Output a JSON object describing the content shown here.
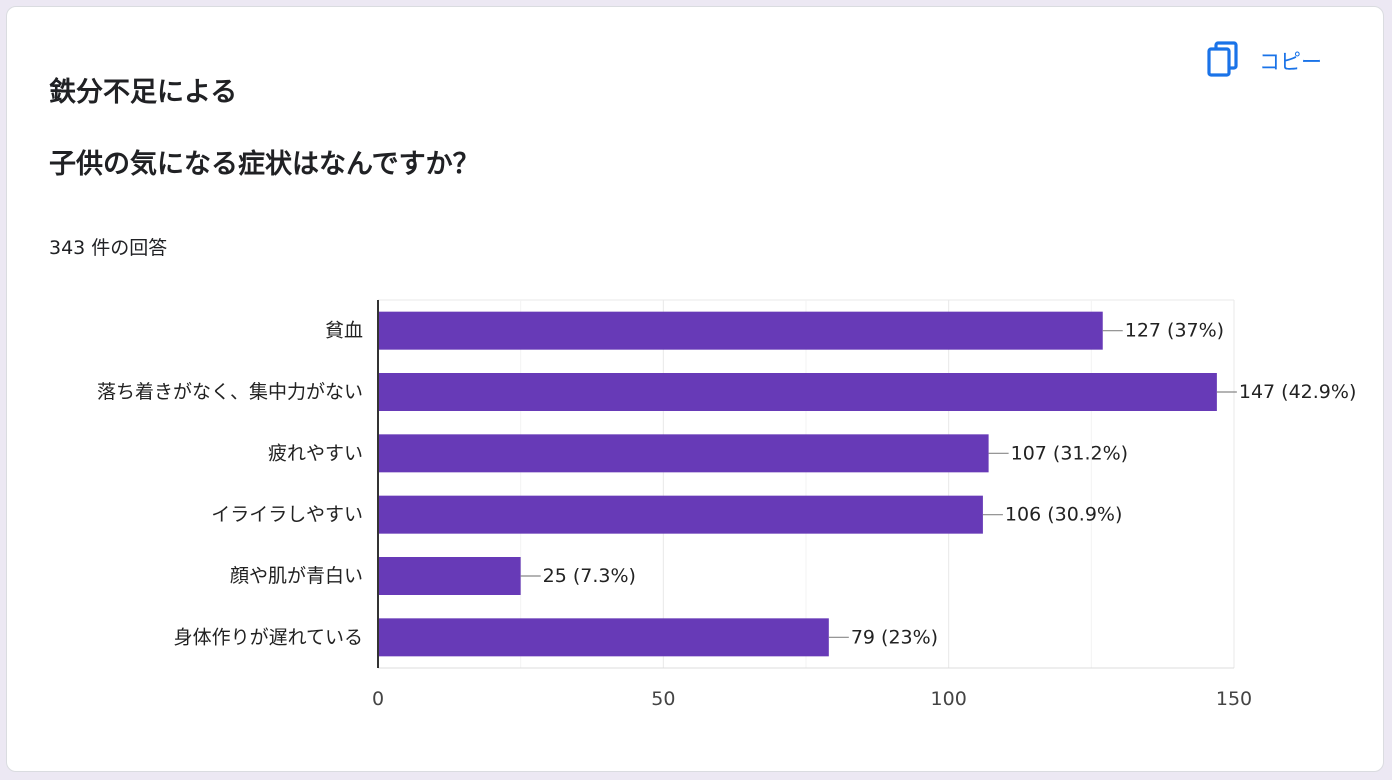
{
  "question": {
    "title_line1": "鉄分不足による",
    "title_line2": "子供の気になる症状はなんですか？",
    "response_count": "343 件の回答"
  },
  "copy_button": {
    "label": "コピー",
    "icon": "copy-icon"
  },
  "colors": {
    "bar": "#673ab7",
    "accent": "#1a73e8",
    "grid": "#e8e8e8",
    "axis": "#333333"
  },
  "chart_data": {
    "type": "bar",
    "orientation": "horizontal",
    "categories": [
      "貧血",
      "落ち着きがなく、集中力がない",
      "疲れやすい",
      "イライラしやすい",
      "顔や肌が青白い",
      "身体作りが遅れている"
    ],
    "values": [
      127,
      147,
      107,
      106,
      25,
      79
    ],
    "data_labels": [
      "127 (37%)",
      "147 (42.9%)",
      "107 (31.2%)",
      "106 (30.9%)",
      "25 (7.3%)",
      "79 (23%)"
    ],
    "xlim": [
      0,
      150
    ],
    "x_ticks": [
      0,
      50,
      100,
      150
    ],
    "grid": true,
    "title": "",
    "xlabel": "",
    "ylabel": ""
  }
}
